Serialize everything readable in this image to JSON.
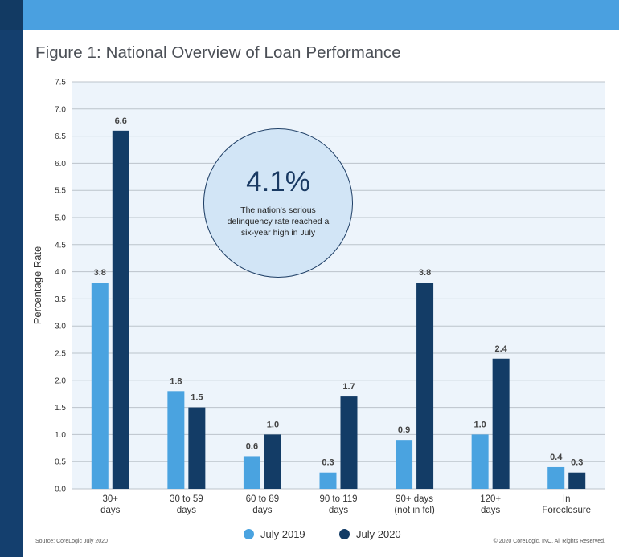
{
  "page": {
    "title": "Figure 1: National Overview of Loan Performance",
    "source": "Source: CoreLogic July 2020",
    "copyright": "© 2020 CoreLogic, INC. All Rights Reserved."
  },
  "callout": {
    "value": "4.1%",
    "text": "The nation's serious delinquency rate reached a six-year high in July"
  },
  "legend": {
    "items": [
      {
        "label": "July 2019",
        "color": "#4aa3e0"
      },
      {
        "label": "July 2020",
        "color": "#133c66"
      }
    ]
  },
  "chart_data": {
    "type": "bar",
    "title": "Figure 1: National Overview of Loan Performance",
    "ylabel": "Percentage Rate",
    "xlabel": "",
    "ylim": [
      0,
      7.5
    ],
    "yticks": [
      0,
      0.5,
      1,
      1.5,
      2,
      2.5,
      3,
      3.5,
      4,
      4.5,
      5,
      5.5,
      6,
      6.5,
      7,
      7.5
    ],
    "ytick_labels": [
      "0.0",
      "0.5",
      "1.0",
      "1.5",
      "2.0",
      "2.5",
      "3.0",
      "3.5",
      "4.0",
      "4.5",
      "5.0",
      "5.5",
      "6.0",
      "6.5",
      "7.0",
      "7.5"
    ],
    "categories": [
      [
        "30+",
        "days"
      ],
      [
        "30 to 59",
        "days"
      ],
      [
        "60 to 89",
        "days"
      ],
      [
        "90 to 119",
        "days"
      ],
      [
        "90+ days",
        "(not in fcl)"
      ],
      [
        "120+",
        "days"
      ],
      [
        "In",
        "Foreclosure"
      ]
    ],
    "series": [
      {
        "name": "July 2019",
        "color": "#4aa3e0",
        "values": [
          3.8,
          1.8,
          0.6,
          0.3,
          0.9,
          1.0,
          0.4
        ],
        "labels": [
          "3.8",
          "1.8",
          "0.6",
          "0.3",
          "0.9",
          "1.0",
          "0.4"
        ]
      },
      {
        "name": "July 2020",
        "color": "#133c66",
        "values": [
          6.6,
          1.5,
          1.0,
          1.7,
          3.8,
          2.4,
          0.3
        ],
        "labels": [
          "6.6",
          "1.5",
          "1.0",
          "1.7",
          "3.8",
          "2.4",
          "0.3"
        ]
      }
    ],
    "grid": true,
    "legend_position": "bottom",
    "background": "#edf4fb"
  }
}
